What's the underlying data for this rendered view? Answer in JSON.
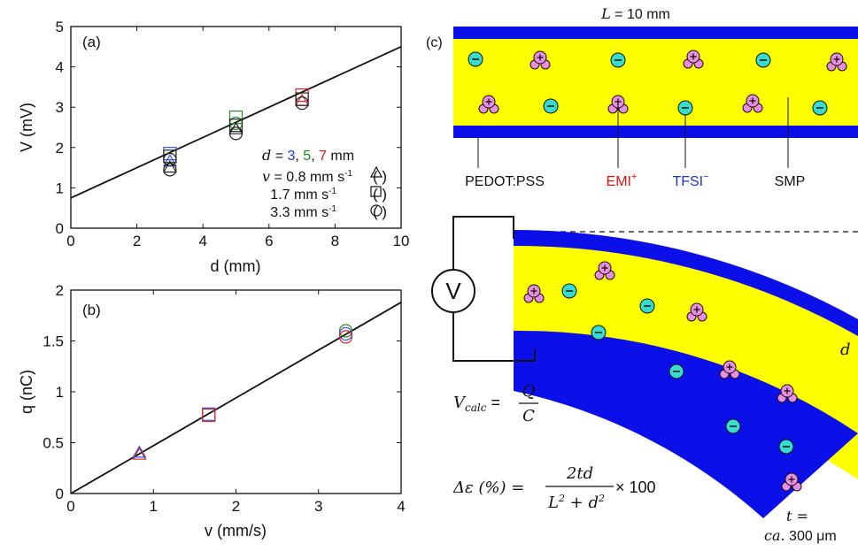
{
  "chart_data": [
    {
      "panel": "(a)",
      "type": "scatter",
      "xlabel": "d (mm)",
      "ylabel": "V (mV)",
      "xlim": [
        0,
        10
      ],
      "ylim": [
        0,
        5
      ],
      "xticks": [
        "0",
        "2",
        "4",
        "6",
        "8",
        "10"
      ],
      "yticks": [
        "0",
        "1",
        "2",
        "3",
        "4",
        "5"
      ],
      "fit_line": {
        "intercept": 0.75,
        "slope": 0.375
      },
      "points": [
        {
          "x": 3,
          "y": 1.85,
          "marker": "square",
          "color": "#3355dd"
        },
        {
          "x": 3,
          "y": 1.65,
          "marker": "triangle",
          "color": "#3355dd"
        },
        {
          "x": 3,
          "y": 1.78,
          "marker": "square",
          "color": "#222222"
        },
        {
          "x": 3,
          "y": 1.7,
          "marker": "circle",
          "color": "#222222"
        },
        {
          "x": 3,
          "y": 1.5,
          "marker": "triangle",
          "color": "#222222"
        },
        {
          "x": 3,
          "y": 1.45,
          "marker": "circle",
          "color": "#222222"
        },
        {
          "x": 5,
          "y": 2.75,
          "marker": "square",
          "color": "#2a8a2a"
        },
        {
          "x": 5,
          "y": 2.6,
          "marker": "circle",
          "color": "#2a8a2a"
        },
        {
          "x": 5,
          "y": 2.55,
          "marker": "square",
          "color": "#222222"
        },
        {
          "x": 5,
          "y": 2.45,
          "marker": "triangle",
          "color": "#222222"
        },
        {
          "x": 5,
          "y": 2.35,
          "marker": "circle",
          "color": "#222222"
        },
        {
          "x": 7,
          "y": 3.3,
          "marker": "square",
          "color": "#dd2222"
        },
        {
          "x": 7,
          "y": 3.15,
          "marker": "triangle",
          "color": "#dd2222"
        },
        {
          "x": 7,
          "y": 3.2,
          "marker": "square",
          "color": "#222222"
        },
        {
          "x": 7,
          "y": 3.1,
          "marker": "circle",
          "color": "#222222"
        }
      ],
      "legend": {
        "d_prefix": "d",
        "d_eq": " = ",
        "d_values": [
          {
            "text": "3",
            "color": "#2233dd"
          },
          {
            "text": ", ",
            "color": "#111111"
          },
          {
            "text": "5",
            "color": "#1e8a1e"
          },
          {
            "text": ", ",
            "color": "#111111"
          },
          {
            "text": "7",
            "color": "#dd1111"
          },
          {
            "text": " mm",
            "color": "#111111"
          }
        ],
        "v_prefix": "v",
        "velocities": [
          {
            "label": " = 0.8 mm s",
            "exp": "-1",
            "marker": "triangle"
          },
          {
            "label": "1.7 mm s",
            "exp": "-1",
            "marker": "square"
          },
          {
            "label": "3.3 mm s",
            "exp": "-1",
            "marker": "circle"
          }
        ]
      }
    },
    {
      "panel": "(b)",
      "type": "scatter",
      "xlabel": "v (mm/s)",
      "ylabel": "q (nC)",
      "xlim": [
        0,
        4
      ],
      "ylim": [
        0,
        2
      ],
      "xticks": [
        "0",
        "1",
        "2",
        "3",
        "4"
      ],
      "yticks": [
        "0",
        "0.5",
        "1",
        "1.5",
        "2"
      ],
      "fit_line": {
        "intercept": 0,
        "slope": 0.47
      },
      "points": [
        {
          "x": 0.83,
          "y": 0.38,
          "marker": "triangle",
          "color": "#dd2222"
        },
        {
          "x": 0.83,
          "y": 0.4,
          "marker": "triangle",
          "color": "#3355dd"
        },
        {
          "x": 1.67,
          "y": 0.78,
          "marker": "square",
          "color": "#3355dd"
        },
        {
          "x": 1.67,
          "y": 0.77,
          "marker": "square",
          "color": "#dd2222"
        },
        {
          "x": 3.33,
          "y": 1.6,
          "marker": "circle",
          "color": "#2a8a2a"
        },
        {
          "x": 3.33,
          "y": 1.57,
          "marker": "circle",
          "color": "#3355dd"
        },
        {
          "x": 3.33,
          "y": 1.54,
          "marker": "circle",
          "color": "#dd2222"
        }
      ]
    }
  ],
  "diagram": {
    "panel": "(c)",
    "length_var": "L",
    "length_rest": " = 10 mm",
    "labels": [
      {
        "text": "PEDOT:PSS",
        "color": "#111111"
      },
      {
        "text": "EMI",
        "sup": "+",
        "color": "#dd1111"
      },
      {
        "text": "TFSI",
        "sup": "−",
        "color": "#2233dd"
      },
      {
        "text": "SMP",
        "color": "#111111"
      }
    ],
    "meter": "V",
    "d_label": "d",
    "vcalc": {
      "lhs": "V",
      "sub": "calc",
      "eq": " = ",
      "num": "Q",
      "den": "C"
    },
    "strain": {
      "lhs": "Δε (%) = ",
      "num": "2td",
      "den_a": "L",
      "den_b": " + d",
      "sq": "2",
      "tail": " × 100"
    },
    "thickness_eq": "t =",
    "thickness_ca": "ca.",
    "thickness_val": " 300 μm",
    "colors": {
      "electrode": "#0b10e8",
      "polymer": "#ffff00",
      "cation": "#e98de0",
      "anion": "#36dccf"
    }
  }
}
